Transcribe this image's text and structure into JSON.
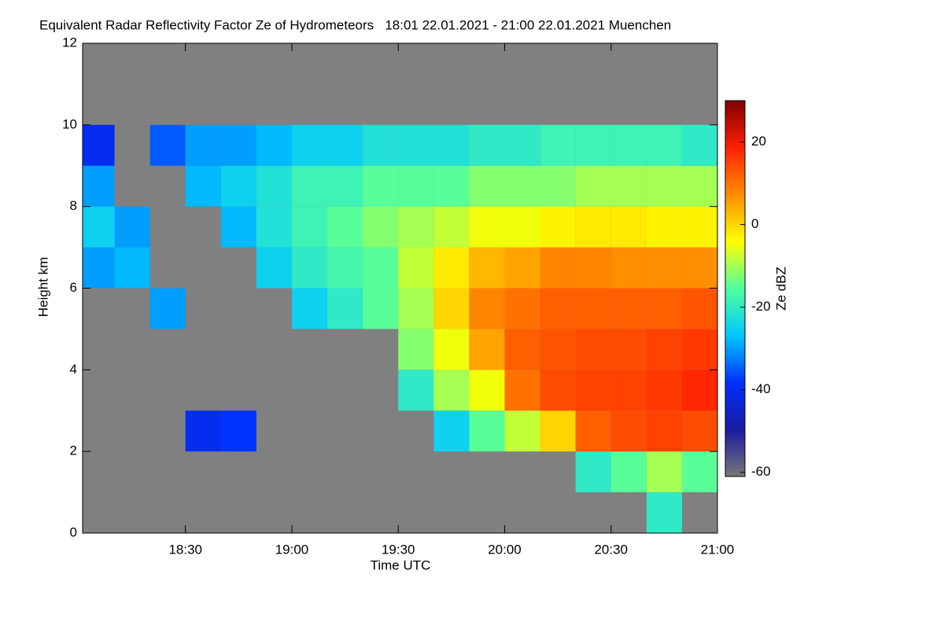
{
  "chart_data": {
    "type": "heatmap",
    "title": "Equivalent Radar Reflectivity Factor Ze of Hydrometeors   18:01 22.01.2021 - 21:00 22.01.2021 Muenchen",
    "xlabel": "Time UTC",
    "ylabel": "Height km",
    "colorbar_label": "Ze dBZ",
    "xlim": [
      "18:01",
      "21:00"
    ],
    "xticks": [
      "18:30",
      "19:00",
      "19:30",
      "20:00",
      "20:30",
      "21:00"
    ],
    "ylim": [
      0,
      12
    ],
    "yticks": [
      0,
      2,
      4,
      6,
      8,
      10,
      12
    ],
    "zlim": [
      -61,
      30
    ],
    "zticks": [
      -60,
      -40,
      -20,
      0,
      20
    ],
    "colormap": [
      "#777777",
      "#1a1aa0",
      "#0030ff",
      "#00c8ff",
      "#50ffa0",
      "#ffff00",
      "#ff8c00",
      "#ff2000",
      "#800000"
    ],
    "missing_color": "#808080",
    "x": [
      "18:05",
      "18:15",
      "18:25",
      "18:35",
      "18:45",
      "18:55",
      "19:05",
      "19:15",
      "19:25",
      "19:35",
      "19:45",
      "19:55",
      "20:05",
      "20:15",
      "20:25",
      "20:35",
      "20:45",
      "20:55"
    ],
    "y": [
      0.5,
      1.5,
      2.5,
      3.5,
      4.5,
      5.5,
      6.5,
      7.5,
      8.5,
      9.5
    ],
    "values": [
      [
        null,
        null,
        null,
        null,
        null,
        null,
        null,
        null,
        null,
        null,
        null,
        null,
        null,
        null,
        null,
        null,
        -20,
        null
      ],
      [
        null,
        null,
        null,
        null,
        null,
        null,
        null,
        null,
        null,
        null,
        null,
        null,
        null,
        null,
        -20,
        -15,
        -10,
        -15
      ],
      [
        null,
        null,
        null,
        -40,
        -38,
        null,
        null,
        null,
        null,
        null,
        -25,
        -15,
        -8,
        0,
        12,
        14,
        15,
        14
      ],
      [
        null,
        null,
        null,
        null,
        null,
        null,
        null,
        null,
        null,
        -20,
        -10,
        -5,
        10,
        14,
        15,
        15,
        16,
        18
      ],
      [
        null,
        null,
        null,
        null,
        null,
        null,
        null,
        null,
        null,
        -12,
        -5,
        5,
        12,
        13,
        14,
        14,
        15,
        16
      ],
      [
        null,
        null,
        -30,
        null,
        null,
        null,
        -25,
        -20,
        -15,
        -10,
        0,
        8,
        10,
        12,
        12,
        12,
        12,
        13
      ],
      [
        -30,
        -28,
        null,
        null,
        null,
        -25,
        -20,
        -17,
        -15,
        -8,
        -2,
        3,
        5,
        8,
        8,
        7,
        7,
        7
      ],
      [
        -25,
        -30,
        null,
        null,
        -28,
        -22,
        -18,
        -15,
        -12,
        -10,
        -8,
        -5,
        -5,
        -3,
        -2,
        -2,
        -3,
        -3
      ],
      [
        -30,
        null,
        null,
        -28,
        -25,
        -22,
        -18,
        -18,
        -15,
        -15,
        -15,
        -12,
        -12,
        -12,
        -10,
        -10,
        -10,
        -10
      ],
      [
        -40,
        null,
        -35,
        -30,
        -30,
        -28,
        -25,
        -25,
        -22,
        -22,
        -22,
        -20,
        -20,
        -18,
        -18,
        -18,
        -18,
        -20
      ]
    ]
  }
}
